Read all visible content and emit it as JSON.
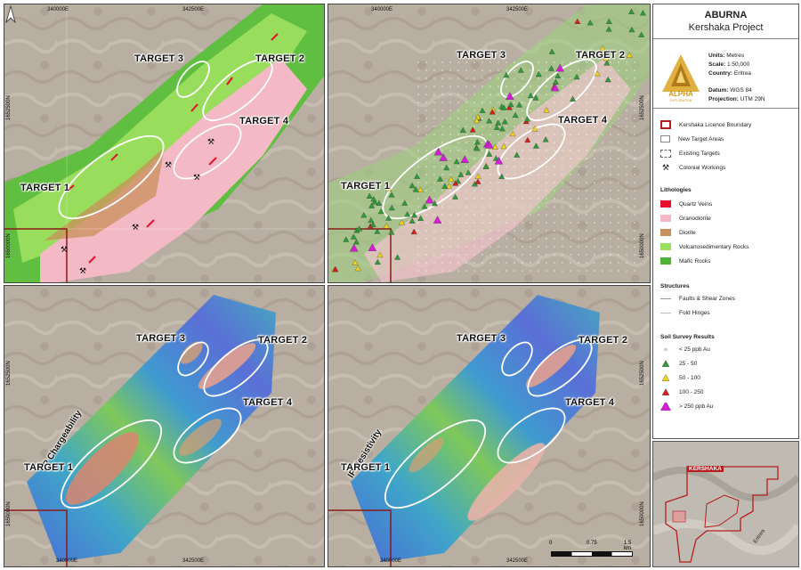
{
  "map": {
    "north_label": "N",
    "grid": {
      "east_1": "340000E",
      "east_2": "342500E",
      "north_1": "1652500N",
      "north_2": "1650000N"
    },
    "targets": {
      "t1": "TARGET 1",
      "t2": "TARGET 2",
      "t3": "TARGET 3",
      "t4": "TARGET 4"
    },
    "ip_chargeability": "IP Chargeability",
    "ip_resistivity": "IP Resistivity",
    "panels": [
      "Lithology",
      "Soil survey results",
      "IP Chargeability",
      "IP Resistivity"
    ]
  },
  "legend": {
    "title": "ABURNA",
    "subtitle": "Kershaka Project",
    "logo_text": "ALPHA",
    "logo_sub": "EXPLORATION",
    "meta": {
      "units_label": "Units:",
      "units_value": "Metres",
      "scale_label": "Scale:",
      "scale_value": "1:50,000",
      "country_label": "Country:",
      "country_value": "Eritrea",
      "datum_label": "Datum:",
      "datum_value": "WGS 84",
      "projection_label": "Projection:",
      "projection_value": "UTM 29N"
    },
    "boundaries": [
      {
        "label": "Kershaka Licence Boundary"
      },
      {
        "label": "New Target Areas"
      },
      {
        "label": "Existing Targets"
      },
      {
        "label": "Colonial Workings"
      }
    ],
    "lithologies_title": "Lithologies",
    "lithologies": [
      {
        "label": "Quartz Veins",
        "color": "#e8102e"
      },
      {
        "label": "Granodiorite",
        "color": "#f3b8c4"
      },
      {
        "label": "Diorite",
        "color": "#c98f5a"
      },
      {
        "label": "Volcanosedimentary Rocks",
        "color": "#9be05a"
      },
      {
        "label": "Mafic Rocks",
        "color": "#4fb33a"
      }
    ],
    "structures_title": "Structures",
    "structures": [
      {
        "label": "Faults & Shear Zones"
      },
      {
        "label": "Fold Hinges"
      }
    ],
    "soil_title": "Soil Survey Results",
    "soil": [
      {
        "label": "< 25 ppb Au",
        "color": "#d8d8d8"
      },
      {
        "label": "25 - 50",
        "color": "#2e9a3a"
      },
      {
        "label": "50 - 100",
        "color": "#f2d21a"
      },
      {
        "label": "100 - 250",
        "color": "#d81c1c"
      },
      {
        "label": "> 250 ppb Au",
        "color": "#d21fd2"
      }
    ]
  },
  "inset": {
    "label": "KERSHAKA",
    "country": "Eritrea"
  },
  "scalebar": {
    "ticks": [
      "0",
      "0.75",
      "1.5 km"
    ]
  }
}
